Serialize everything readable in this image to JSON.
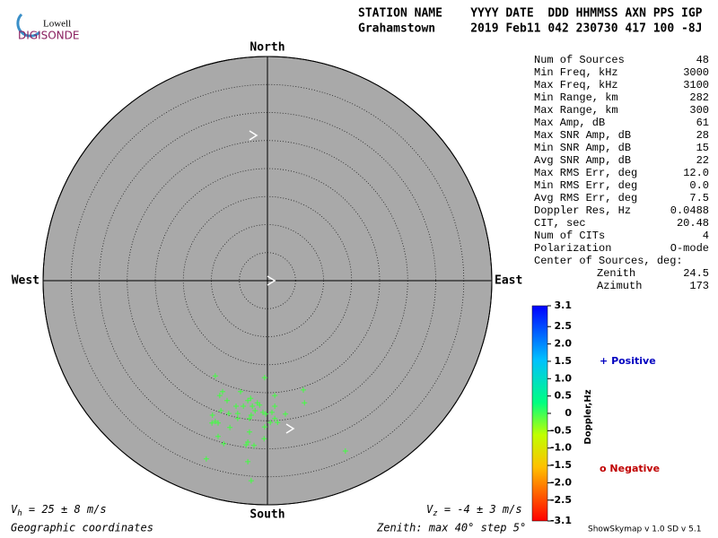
{
  "logo": {
    "top": "Lowell",
    "bottom": "DIGISONDE"
  },
  "header": {
    "line1": "STATION NAME    YYYY DATE  DDD HHMMSS AXN PPS IGP",
    "line2": "Grahamstown     2019 Feb11 042 230730 417 100 -8J"
  },
  "stats": [
    {
      "label": "Num of Sources",
      "value": "48"
    },
    {
      "label": "Min Freq, kHz",
      "value": "3000"
    },
    {
      "label": "Max Freq, kHz",
      "value": "3100"
    },
    {
      "label": "Min Range, km",
      "value": "282"
    },
    {
      "label": "Max Range, km",
      "value": "300"
    },
    {
      "label": "Max Amp, dB",
      "value": "61"
    },
    {
      "label": "Max SNR Amp, dB",
      "value": "28"
    },
    {
      "label": "Min SNR Amp, dB",
      "value": "15"
    },
    {
      "label": "Avg SNR Amp, dB",
      "value": "22"
    },
    {
      "label": "Max RMS Err, deg",
      "value": "12.0"
    },
    {
      "label": "Min RMS Err, deg",
      "value": "0.0"
    },
    {
      "label": "Avg RMS Err, deg",
      "value": "7.5"
    },
    {
      "label": "Doppler Res, Hz",
      "value": "0.0488"
    },
    {
      "label": "CIT, sec",
      "value": "20.48"
    },
    {
      "label": "Num of CITs",
      "value": "4"
    },
    {
      "label": "Polarization",
      "value": "O-mode"
    },
    {
      "label": "Center of Sources, deg:"
    },
    {
      "label": "Zenith",
      "value": "24.5"
    },
    {
      "label": "Azimuth",
      "value": "173"
    }
  ],
  "legend": {
    "positive_symbol": "+",
    "positive": "Positive",
    "negative_symbol": "o",
    "negative": "Negative"
  },
  "footer": {
    "vh": "V",
    "vh_sub": "h",
    "vh_rest": " = 25 ± 8 m/s",
    "vz": "V",
    "vz_sub": "z",
    "vz_rest": " = -4 ± 3 m/s",
    "coords": "Geographic coordinates",
    "zenith": "Zenith: max 40°  step 5°",
    "version": "ShowSkymap v 1.0  SD v 5.1"
  },
  "chart_data": [
    {
      "type": "scatter",
      "directions": {
        "north": "North",
        "south": "South",
        "east": "East",
        "west": "West"
      },
      "color": "#40ff40",
      "xlim": [
        -40,
        40
      ],
      "ylim": [
        -40,
        40
      ],
      "rticks": [
        5,
        10,
        15,
        20,
        25,
        30,
        35,
        40
      ],
      "x": [
        -9.3,
        -0.5,
        -8.0,
        -8.5,
        6.4,
        -4.8,
        -3.0,
        1.3,
        -7.2,
        -3.5,
        -1.8,
        6.6,
        -5.6,
        -4.3,
        -2.7,
        -1.4,
        1.3,
        -8.3,
        -5.3,
        -2.2,
        -0.8,
        0.8,
        -9.8,
        -6.9,
        -2.9,
        -0.3,
        3.2,
        -9.9,
        -8.8,
        -5.3,
        -3.2,
        1.3,
        -6.7,
        -0.5,
        1.8,
        -3.2,
        -8.8,
        -7.8,
        -3.5,
        -2.4,
        -3.8,
        -0.6,
        13.9,
        -10.9,
        -3.5,
        -2.9,
        -9.3,
        0.5
      ],
      "values": [
        -17.0,
        -17.3,
        -19.8,
        -20.5,
        -19.5,
        -19.8,
        -21.0,
        -20.5,
        -21.4,
        -21.4,
        -21.8,
        -21.8,
        -22.4,
        -22.4,
        -22.4,
        -22.2,
        -22.4,
        -23.2,
        -23.7,
        -23.2,
        -23.5,
        -23.5,
        -24.0,
        -23.7,
        -24.0,
        -23.8,
        -23.8,
        -25.4,
        -25.4,
        -24.6,
        -24.6,
        -24.6,
        -26.2,
        -26.1,
        -25.3,
        -27.0,
        -27.8,
        -29.1,
        -28.8,
        -29.4,
        -29.3,
        -28.2,
        -30.4,
        -31.8,
        -32.3,
        -35.7,
        -25.1,
        -25.3
      ]
    },
    {
      "type": "colorbar",
      "title": "Doppler,Hz",
      "ylim": [
        -3.1,
        3.1
      ],
      "yticks": [
        3.1,
        2.5,
        {
          "value": 2,
          "label": "2.0"
        },
        1.5,
        {
          "value": 1,
          "label": "1.0"
        },
        0.5,
        0,
        -0.5,
        {
          "value": -1,
          "label": "-1.0"
        },
        -1.5,
        {
          "value": -2,
          "label": "-2.0"
        },
        -2.5,
        -3.1
      ]
    }
  ]
}
